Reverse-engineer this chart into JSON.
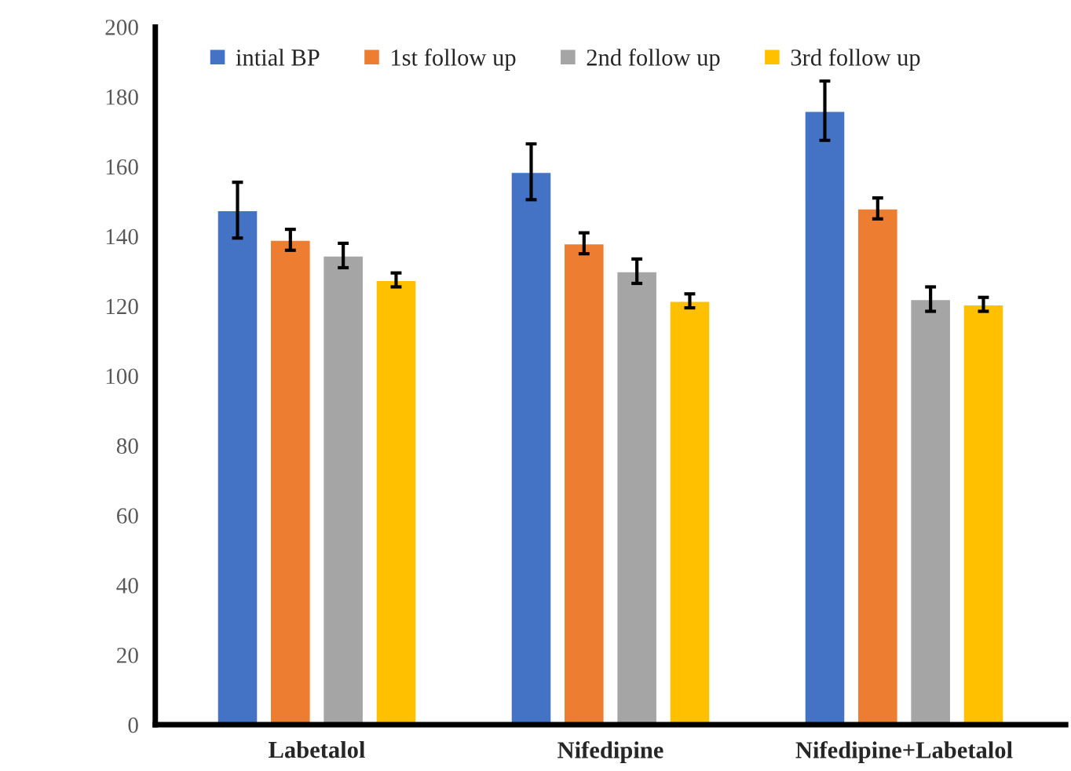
{
  "chart_data": {
    "type": "bar",
    "categories": [
      "Labetalol",
      "Nifedipine",
      "Nifedipine+Labetalol"
    ],
    "series": [
      {
        "name": "intial BP",
        "color": "#4472c4",
        "values": [
          147.5,
          158.5,
          176
        ],
        "errors": [
          8,
          8,
          8.5
        ]
      },
      {
        "name": "1st follow up",
        "color": "#ed7d31",
        "values": [
          139,
          138,
          148
        ],
        "errors": [
          3,
          3,
          3
        ]
      },
      {
        "name": "2nd follow up",
        "color": "#a5a5a5",
        "values": [
          134.5,
          130,
          122
        ],
        "errors": [
          3.5,
          3.5,
          3.5
        ]
      },
      {
        "name": "3rd follow up",
        "color": "#ffc000",
        "values": [
          127.5,
          121.5,
          120.5
        ],
        "errors": [
          2,
          2,
          2
        ]
      }
    ],
    "ylim": [
      0,
      200
    ],
    "yticks": [
      0,
      20,
      40,
      60,
      80,
      100,
      120,
      140,
      160,
      180,
      200
    ],
    "grid": false,
    "legend": "top"
  }
}
